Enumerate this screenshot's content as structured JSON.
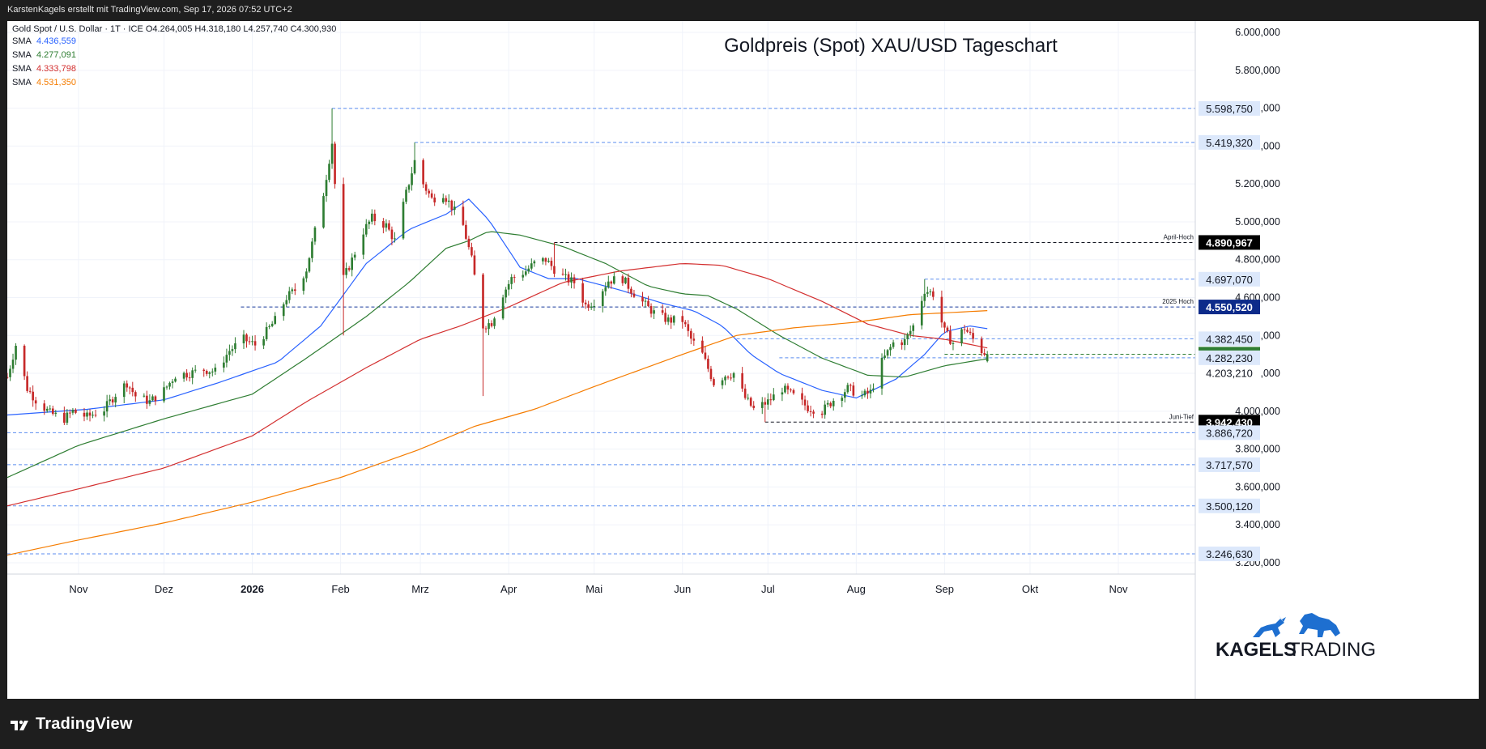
{
  "credit": "KarstenKagels erstellt mit TradingView.com, Sep 17, 2026 07:52 UTC+2",
  "symbol_line": {
    "name": "Gold Spot / U.S. Dollar · 1T · ICE",
    "o": "O4.264,005",
    "h": "H4.318,180",
    "l": "L4.257,740",
    "c": "C4.300,930"
  },
  "indicators": [
    {
      "label": "SMA",
      "value": "4.436,559",
      "color": "#2962ff"
    },
    {
      "label": "SMA",
      "value": "4.277,091",
      "color": "#2e7d32"
    },
    {
      "label": "SMA",
      "value": "4.333,798",
      "color": "#d32f2f"
    },
    {
      "label": "SMA",
      "value": "4.531,350",
      "color": "#f57c00"
    }
  ],
  "brand": {
    "name": "TradingView"
  },
  "chart_data": {
    "type": "candlestick",
    "title": "Goldpreis (Spot) XAU/USD Tageschart",
    "xlabel": "",
    "ylabel": "",
    "x_tick_labels": [
      "Nov",
      "Dez",
      "2026",
      "Feb",
      "Mrz",
      "Apr",
      "Mai",
      "Jun",
      "Jul",
      "Aug",
      "Sep",
      "Okt",
      "Nov"
    ],
    "x_tick_dates": [
      "2025-11-01",
      "2025-12-01",
      "2026-01-01",
      "2026-02-01",
      "2026-03-01",
      "2026-04-01",
      "2026-05-01",
      "2026-06-01",
      "2026-07-01",
      "2026-08-01",
      "2026-09-01",
      "2026-10-01",
      "2026-11-01"
    ],
    "x_range": [
      "2025-10-07",
      "2026-11-28"
    ],
    "y_tick_labels": [
      "3.200,000",
      "3.400,000",
      "3.600,000",
      "3.800,000",
      "4.000,000",
      "4.200,000",
      "4.400,000",
      "4.600,000",
      "4.800,000",
      "5.000,000",
      "5.200,000",
      "5.400,000",
      "5.600,000",
      "5.800,000",
      "6.000,000"
    ],
    "y_ticks": [
      3200,
      3400,
      3600,
      3800,
      4000,
      4200,
      4400,
      4600,
      4800,
      5000,
      5200,
      5400,
      5600,
      5800,
      6000
    ],
    "ylim": [
      3140,
      6060
    ],
    "grid": true,
    "bull_color": "#2e7d32",
    "bear_color": "#c62828",
    "candle_path": [
      [
        "2025-10-07",
        4180
      ],
      [
        "2025-10-10",
        4350
      ],
      [
        "2025-10-14",
        4120
      ],
      [
        "2025-10-17",
        4060
      ],
      [
        "2025-10-22",
        3990
      ],
      [
        "2025-10-27",
        3960
      ],
      [
        "2025-10-30",
        4000
      ],
      [
        "2025-11-04",
        3970
      ],
      [
        "2025-11-10",
        4010
      ],
      [
        "2025-11-14",
        4090
      ],
      [
        "2025-11-18",
        4150
      ],
      [
        "2025-11-21",
        4080
      ],
      [
        "2025-11-26",
        4050
      ],
      [
        "2025-12-01",
        4110
      ],
      [
        "2025-12-05",
        4190
      ],
      [
        "2025-12-10",
        4200
      ],
      [
        "2025-12-15",
        4220
      ],
      [
        "2025-12-19",
        4210
      ],
      [
        "2025-12-24",
        4320
      ],
      [
        "2025-12-29",
        4380
      ],
      [
        "2026-01-02",
        4350
      ],
      [
        "2026-01-06",
        4420
      ],
      [
        "2026-01-09",
        4480
      ],
      [
        "2026-01-13",
        4600
      ],
      [
        "2026-01-16",
        4640
      ],
      [
        "2026-01-20",
        4750
      ],
      [
        "2026-01-23",
        4950
      ],
      [
        "2026-01-26",
        5150
      ],
      [
        "2026-01-29",
        5420
      ],
      [
        "2026-01-30",
        5200
      ],
      [
        "2026-02-02",
        4700
      ],
      [
        "2026-02-05",
        4800
      ],
      [
        "2026-02-09",
        4950
      ],
      [
        "2026-02-12",
        5020
      ],
      [
        "2026-02-17",
        4980
      ],
      [
        "2026-02-20",
        4900
      ],
      [
        "2026-02-24",
        5150
      ],
      [
        "2026-02-27",
        5320
      ],
      [
        "2026-03-02",
        5200
      ],
      [
        "2026-03-05",
        5120
      ],
      [
        "2026-03-09",
        5150
      ],
      [
        "2026-03-12",
        5080
      ],
      [
        "2026-03-16",
        4980
      ],
      [
        "2026-03-19",
        4800
      ],
      [
        "2026-03-23",
        4450
      ],
      [
        "2026-03-26",
        4470
      ],
      [
        "2026-03-30",
        4620
      ],
      [
        "2026-04-02",
        4700
      ],
      [
        "2026-04-07",
        4740
      ],
      [
        "2026-04-10",
        4780
      ],
      [
        "2026-04-14",
        4800
      ],
      [
        "2026-04-17",
        4750
      ],
      [
        "2026-04-21",
        4700
      ],
      [
        "2026-04-24",
        4680
      ],
      [
        "2026-04-28",
        4560
      ],
      [
        "2026-05-01",
        4580
      ],
      [
        "2026-05-06",
        4690
      ],
      [
        "2026-05-11",
        4700
      ],
      [
        "2026-05-14",
        4640
      ],
      [
        "2026-05-19",
        4560
      ],
      [
        "2026-05-22",
        4520
      ],
      [
        "2026-05-27",
        4480
      ],
      [
        "2026-06-01",
        4480
      ],
      [
        "2026-06-04",
        4380
      ],
      [
        "2026-06-08",
        4300
      ],
      [
        "2026-06-12",
        4150
      ],
      [
        "2026-06-16",
        4190
      ],
      [
        "2026-06-19",
        4200
      ],
      [
        "2026-06-23",
        4070
      ],
      [
        "2026-06-26",
        4010
      ],
      [
        "2026-07-01",
        4050
      ],
      [
        "2026-07-06",
        4120
      ],
      [
        "2026-07-10",
        4080
      ],
      [
        "2026-07-15",
        4020
      ],
      [
        "2026-07-20",
        4000
      ],
      [
        "2026-07-24",
        4060
      ],
      [
        "2026-07-29",
        4120
      ],
      [
        "2026-08-03",
        4080
      ],
      [
        "2026-08-06",
        4100
      ],
      [
        "2026-08-10",
        4260
      ],
      [
        "2026-08-14",
        4360
      ],
      [
        "2026-08-18",
        4370
      ],
      [
        "2026-08-21",
        4450
      ],
      [
        "2026-08-25",
        4640
      ],
      [
        "2026-08-28",
        4620
      ],
      [
        "2026-09-01",
        4420
      ],
      [
        "2026-09-04",
        4360
      ],
      [
        "2026-09-08",
        4440
      ],
      [
        "2026-09-11",
        4380
      ],
      [
        "2026-09-14",
        4320
      ],
      [
        "2026-09-16",
        4301
      ]
    ],
    "series": [
      {
        "name": "SMA",
        "color": "#2962ff",
        "points": [
          [
            "2025-10-07",
            3980
          ],
          [
            "2025-11-04",
            4010
          ],
          [
            "2025-12-01",
            4060
          ],
          [
            "2025-12-20",
            4150
          ],
          [
            "2026-01-10",
            4260
          ],
          [
            "2026-01-25",
            4450
          ],
          [
            "2026-02-10",
            4780
          ],
          [
            "2026-02-25",
            4960
          ],
          [
            "2026-03-10",
            5040
          ],
          [
            "2026-03-18",
            5120
          ],
          [
            "2026-03-25",
            5010
          ],
          [
            "2026-04-05",
            4760
          ],
          [
            "2026-04-15",
            4700
          ],
          [
            "2026-04-25",
            4700
          ],
          [
            "2026-05-10",
            4640
          ],
          [
            "2026-05-25",
            4570
          ],
          [
            "2026-06-05",
            4530
          ],
          [
            "2026-06-15",
            4450
          ],
          [
            "2026-06-25",
            4300
          ],
          [
            "2026-07-05",
            4200
          ],
          [
            "2026-07-20",
            4110
          ],
          [
            "2026-08-01",
            4070
          ],
          [
            "2026-08-15",
            4170
          ],
          [
            "2026-08-25",
            4300
          ],
          [
            "2026-09-01",
            4420
          ],
          [
            "2026-09-10",
            4450
          ],
          [
            "2026-09-16",
            4436
          ]
        ]
      },
      {
        "name": "SMA",
        "color": "#2e7d32",
        "points": [
          [
            "2025-10-07",
            3650
          ],
          [
            "2025-11-01",
            3820
          ],
          [
            "2025-12-01",
            3960
          ],
          [
            "2026-01-01",
            4090
          ],
          [
            "2026-01-20",
            4280
          ],
          [
            "2026-02-10",
            4500
          ],
          [
            "2026-02-25",
            4680
          ],
          [
            "2026-03-10",
            4860
          ],
          [
            "2026-03-18",
            4900
          ],
          [
            "2026-03-25",
            4950
          ],
          [
            "2026-04-05",
            4930
          ],
          [
            "2026-04-20",
            4870
          ],
          [
            "2026-05-05",
            4780
          ],
          [
            "2026-05-20",
            4660
          ],
          [
            "2026-06-01",
            4620
          ],
          [
            "2026-06-10",
            4610
          ],
          [
            "2026-06-20",
            4540
          ],
          [
            "2026-07-05",
            4400
          ],
          [
            "2026-07-20",
            4280
          ],
          [
            "2026-08-05",
            4190
          ],
          [
            "2026-08-18",
            4180
          ],
          [
            "2026-09-01",
            4240
          ],
          [
            "2026-09-16",
            4277
          ]
        ]
      },
      {
        "name": "SMA",
        "color": "#d32f2f",
        "points": [
          [
            "2025-10-07",
            3500
          ],
          [
            "2025-11-01",
            3590
          ],
          [
            "2025-12-01",
            3700
          ],
          [
            "2026-01-01",
            3870
          ],
          [
            "2026-01-20",
            4050
          ],
          [
            "2026-02-10",
            4230
          ],
          [
            "2026-03-01",
            4380
          ],
          [
            "2026-03-15",
            4450
          ],
          [
            "2026-04-01",
            4550
          ],
          [
            "2026-04-20",
            4680
          ],
          [
            "2026-05-10",
            4740
          ],
          [
            "2026-06-01",
            4780
          ],
          [
            "2026-06-15",
            4770
          ],
          [
            "2026-07-01",
            4700
          ],
          [
            "2026-07-20",
            4580
          ],
          [
            "2026-08-05",
            4460
          ],
          [
            "2026-08-20",
            4400
          ],
          [
            "2026-09-01",
            4380
          ],
          [
            "2026-09-16",
            4334
          ]
        ]
      },
      {
        "name": "SMA",
        "color": "#f57c00",
        "points": [
          [
            "2025-10-07",
            3240
          ],
          [
            "2025-11-01",
            3320
          ],
          [
            "2025-12-01",
            3410
          ],
          [
            "2026-01-01",
            3520
          ],
          [
            "2026-02-01",
            3650
          ],
          [
            "2026-03-01",
            3800
          ],
          [
            "2026-03-20",
            3920
          ],
          [
            "2026-04-10",
            4010
          ],
          [
            "2026-05-01",
            4130
          ],
          [
            "2026-06-01",
            4300
          ],
          [
            "2026-06-20",
            4400
          ],
          [
            "2026-07-10",
            4440
          ],
          [
            "2026-08-01",
            4470
          ],
          [
            "2026-08-20",
            4510
          ],
          [
            "2026-09-16",
            4531
          ]
        ]
      }
    ],
    "levels": [
      {
        "value": 5598.75,
        "label": "5.598,750",
        "style": "blue",
        "from": "2026-01-29",
        "note": ""
      },
      {
        "value": 5419.32,
        "label": "5.419,320",
        "style": "blue",
        "from": "2026-02-27",
        "note": ""
      },
      {
        "value": 4890.967,
        "label": "4.890,967",
        "style": "black",
        "from": "2026-04-17",
        "note": "April-Hoch"
      },
      {
        "value": 4697.07,
        "label": "4.697,070",
        "style": "blue",
        "from": "2026-08-25",
        "note": ""
      },
      {
        "value": 4550.52,
        "label": "4.550,520",
        "style": "navy",
        "from": "2025-12-28",
        "note": "2025 Hoch"
      },
      {
        "value": 4382.45,
        "label": "4.382,450",
        "style": "blue",
        "from": "2026-06-20",
        "note": ""
      },
      {
        "value": 4300.93,
        "label": "4.300,930",
        "style": "green",
        "from": "2026-09-01",
        "note": ""
      },
      {
        "value": 4282.23,
        "label": "4.282,230",
        "style": "blue",
        "from": "2026-07-05",
        "note": ""
      },
      {
        "value": 4203.21,
        "label": "4.203,210",
        "style": "none",
        "from": "",
        "note": ""
      },
      {
        "value": 3942.43,
        "label": "3.942,430",
        "style": "black",
        "from": "2026-06-30",
        "note": "Juni-Tief"
      },
      {
        "value": 3886.72,
        "label": "3.886,720",
        "style": "blue",
        "from": "2025-10-07",
        "note": ""
      },
      {
        "value": 3717.57,
        "label": "3.717,570",
        "style": "blue",
        "from": "2025-10-07",
        "note": ""
      },
      {
        "value": 3500.12,
        "label": "3.500,120",
        "style": "blue",
        "from": "2025-10-07",
        "note": ""
      },
      {
        "value": 3246.63,
        "label": "3.246,630",
        "style": "blue",
        "from": "2025-10-07",
        "note": ""
      }
    ],
    "watermark": {
      "kagels": "KAGELS",
      "trading": "TRADING"
    }
  }
}
